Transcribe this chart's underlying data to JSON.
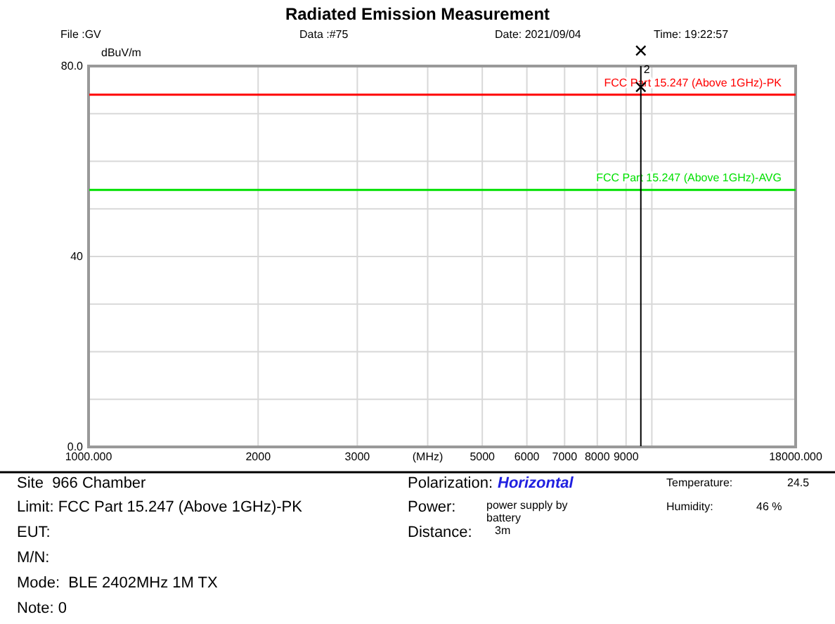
{
  "chart_data": {
    "type": "scatter",
    "title": "Radiated Emission Measurement",
    "ylabel": "dBuV/m",
    "log": "x",
    "grid": true,
    "marker": "cross",
    "xlim": [
      1000,
      18000
    ],
    "xticks": [
      {
        "value": 1000,
        "label": "1000.000"
      },
      2000,
      3000,
      {
        "value": 4000,
        "label": "(MHz)"
      },
      5000,
      6000,
      7000,
      8000,
      9000,
      {
        "value": 10000,
        "label": null
      },
      {
        "value": 18000,
        "label": "18000.000"
      }
    ],
    "ylim": [
      0,
      80
    ],
    "yticks": [
      {
        "value": 0,
        "label": "0.0"
      },
      {
        "value": 10,
        "label": null
      },
      {
        "value": 20,
        "label": null
      },
      {
        "value": 30,
        "label": null
      },
      40,
      {
        "value": 50,
        "label": null
      },
      {
        "value": 60,
        "label": null
      },
      {
        "value": 70,
        "label": null
      },
      {
        "value": 80,
        "label": "80.0"
      }
    ],
    "series": [
      {
        "color": "#000000",
        "x": [
          9560
        ],
        "values": [
          75.6
        ]
      }
    ],
    "ref_lines": [
      {
        "axis": "y",
        "value": 74,
        "label": "FCC Part 15.247 (Above 1GHz)-PK",
        "color": "#ff0000"
      },
      {
        "axis": "y",
        "value": 54,
        "label": "FCC Part 15.247 (Above 1GHz)-AVG",
        "color": "#00e000"
      },
      {
        "axis": "x",
        "value": 9560,
        "color": "#000000"
      }
    ],
    "annotations": [
      "File :GV",
      "Data :#75",
      "Date: 2021/09/04",
      "Time: 19:22:57",
      "Site  966 Chamber",
      "Limit: FCC Part 15.247 (Above 1GHz)-PK",
      "EUT:",
      "M/N:",
      "Mode:  BLE 2402MHz 1M TX",
      "Note: 0",
      "Polarization:",
      "Horizontal",
      "Power:",
      "power supply by battery",
      "Distance:",
      "3m",
      "Temperature:",
      "24.5",
      "Humidity:",
      "46 %",
      {
        "text": "2",
        "x": 9560,
        "y": 78.5
      }
    ]
  }
}
